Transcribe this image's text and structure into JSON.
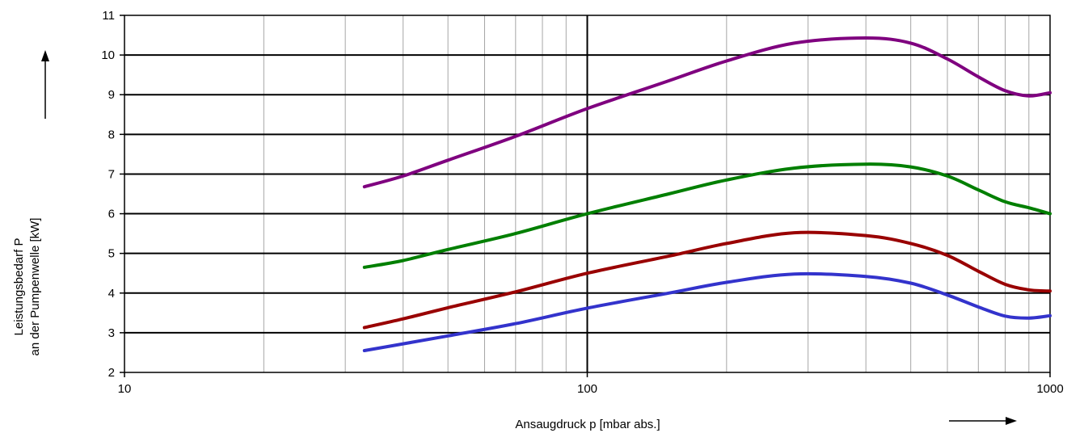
{
  "chart_data": {
    "type": "line",
    "title": "",
    "xlabel": "Ansaugdruck p [mbar abs.]",
    "ylabel_lines": [
      "Leistungsbedarf P",
      "an der Pumpenwelle [kW]"
    ],
    "x_scale": "log",
    "xlim": [
      10,
      1000
    ],
    "ylim": [
      2,
      11
    ],
    "x_ticks": [
      10,
      100,
      1000
    ],
    "x_tick_labels": [
      "10",
      "100",
      "1000"
    ],
    "y_ticks": [
      2,
      3,
      4,
      5,
      6,
      7,
      8,
      9,
      10,
      11
    ],
    "y_tick_labels": [
      "2",
      "3",
      "4",
      "5",
      "6",
      "7",
      "8",
      "9",
      "10",
      "11"
    ],
    "grid": true,
    "legend": "none",
    "x": [
      33,
      40,
      50,
      70,
      100,
      150,
      200,
      280,
      400,
      500,
      600,
      700,
      800,
      900,
      1000
    ],
    "series": [
      {
        "color": "#7f007f",
        "values": [
          6.68,
          6.95,
          7.35,
          7.95,
          8.65,
          9.35,
          9.85,
          10.3,
          10.43,
          10.3,
          9.9,
          9.45,
          9.1,
          8.97,
          9.05
        ]
      },
      {
        "color": "#007f00",
        "values": [
          4.65,
          4.82,
          5.1,
          5.5,
          6.0,
          6.5,
          6.85,
          7.15,
          7.25,
          7.18,
          6.95,
          6.6,
          6.3,
          6.15,
          6.0
        ]
      },
      {
        "color": "#990000",
        "values": [
          3.13,
          3.35,
          3.63,
          4.03,
          4.5,
          4.93,
          5.25,
          5.52,
          5.45,
          5.25,
          4.95,
          4.55,
          4.22,
          4.08,
          4.05
        ]
      },
      {
        "color": "#3333cc",
        "values": [
          2.55,
          2.72,
          2.92,
          3.23,
          3.62,
          4.0,
          4.27,
          4.48,
          4.42,
          4.25,
          3.95,
          3.65,
          3.42,
          3.37,
          3.43
        ]
      }
    ]
  }
}
